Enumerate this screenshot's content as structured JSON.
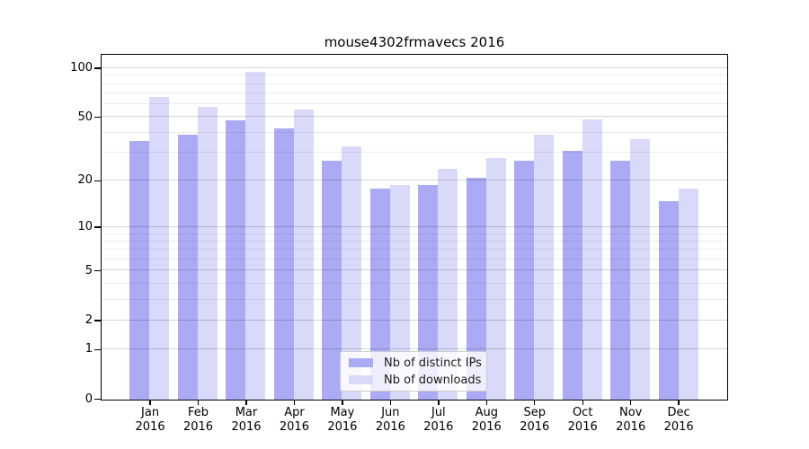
{
  "chart_data": {
    "type": "bar",
    "title": "mouse4302frmavecs 2016",
    "categories": [
      "Jan 2016",
      "Feb 2016",
      "Mar 2016",
      "Apr 2016",
      "May 2016",
      "Jun 2016",
      "Jul 2016",
      "Aug 2016",
      "Sep 2016",
      "Oct 2016",
      "Nov 2016",
      "Dec 2016"
    ],
    "x_tick_labels": [
      [
        "Jan",
        "2016"
      ],
      [
        "Feb",
        "2016"
      ],
      [
        "Mar",
        "2016"
      ],
      [
        "Apr",
        "2016"
      ],
      [
        "May",
        "2016"
      ],
      [
        "Jun",
        "2016"
      ],
      [
        "Jul",
        "2016"
      ],
      [
        "Aug",
        "2016"
      ],
      [
        "Sep",
        "2016"
      ],
      [
        "Oct",
        "2016"
      ],
      [
        "Nov",
        "2016"
      ],
      [
        "Dec",
        "2016"
      ]
    ],
    "series": [
      {
        "name": "Nb of distinct IPs",
        "color": "#aaaaf5",
        "values": [
          36,
          39,
          48,
          43,
          27,
          18,
          19,
          21,
          27,
          31,
          27,
          15
        ]
      },
      {
        "name": "Nb of downloads",
        "color": "#d9d9fa",
        "values": [
          67,
          58,
          95,
          56,
          33,
          19,
          24,
          28,
          39,
          49,
          37,
          18
        ]
      }
    ],
    "xlabel": "",
    "ylabel": "",
    "yscale": "log1p",
    "ylim": [
      0,
      120
    ],
    "y_major_ticks": [
      0,
      1,
      2,
      5,
      10,
      20,
      50,
      100
    ],
    "y_minor_gridlines": [
      3,
      4,
      6,
      7,
      8,
      9,
      30,
      40,
      60,
      70,
      80,
      90
    ],
    "grid": "horizontal",
    "legend_position": "bottom-center",
    "axis_color": "#000000",
    "background_color": "#ffffff"
  }
}
